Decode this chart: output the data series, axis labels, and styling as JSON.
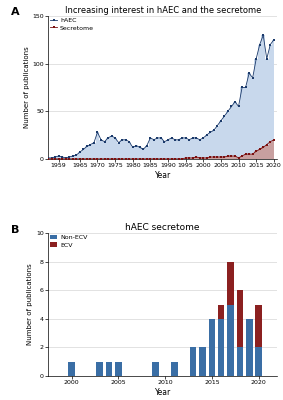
{
  "panel_A": {
    "title": "Increasing interest in hAEC and the secretome",
    "xlabel": "Year",
    "ylabel": "Number of publications",
    "ylim": [
      0,
      150
    ],
    "yticks": [
      0,
      50,
      100,
      150
    ],
    "haec_years": [
      1956,
      1957,
      1958,
      1959,
      1960,
      1961,
      1962,
      1963,
      1964,
      1965,
      1966,
      1967,
      1968,
      1969,
      1970,
      1971,
      1972,
      1973,
      1974,
      1975,
      1976,
      1977,
      1978,
      1979,
      1980,
      1981,
      1982,
      1983,
      1984,
      1985,
      1986,
      1987,
      1988,
      1989,
      1990,
      1991,
      1992,
      1993,
      1994,
      1995,
      1996,
      1997,
      1998,
      1999,
      2000,
      2001,
      2002,
      2003,
      2004,
      2005,
      2006,
      2007,
      2008,
      2009,
      2010,
      2011,
      2012,
      2013,
      2014,
      2015,
      2016,
      2017,
      2018,
      2019,
      2020
    ],
    "haec_values": [
      1,
      1,
      2,
      3,
      2,
      1,
      2,
      3,
      4,
      7,
      10,
      13,
      15,
      17,
      28,
      20,
      18,
      22,
      24,
      22,
      17,
      20,
      20,
      18,
      12,
      14,
      12,
      10,
      14,
      22,
      20,
      22,
      22,
      18,
      20,
      22,
      20,
      20,
      22,
      22,
      20,
      22,
      22,
      20,
      22,
      25,
      28,
      30,
      35,
      40,
      45,
      50,
      55,
      60,
      55,
      75,
      75,
      90,
      85,
      105,
      120,
      130,
      105,
      120,
      125
    ],
    "secretome_years": [
      1956,
      1957,
      1958,
      1959,
      1960,
      1961,
      1962,
      1963,
      1964,
      1965,
      1966,
      1967,
      1968,
      1969,
      1970,
      1971,
      1972,
      1973,
      1974,
      1975,
      1976,
      1977,
      1978,
      1979,
      1980,
      1981,
      1982,
      1983,
      1984,
      1985,
      1986,
      1987,
      1988,
      1989,
      1990,
      1991,
      1992,
      1993,
      1994,
      1995,
      1996,
      1997,
      1998,
      1999,
      2000,
      2001,
      2002,
      2003,
      2004,
      2005,
      2006,
      2007,
      2008,
      2009,
      2010,
      2011,
      2012,
      2013,
      2014,
      2015,
      2016,
      2017,
      2018,
      2019,
      2020
    ],
    "secretome_values": [
      0,
      0,
      0,
      0,
      0,
      0,
      0,
      0,
      0,
      0,
      0,
      0,
      0,
      0,
      0,
      0,
      0,
      0,
      0,
      0,
      0,
      0,
      0,
      0,
      0,
      0,
      0,
      0,
      0,
      0,
      0,
      0,
      0,
      0,
      0,
      0,
      0,
      0,
      0,
      1,
      1,
      1,
      2,
      1,
      1,
      1,
      2,
      2,
      2,
      2,
      2,
      3,
      3,
      3,
      1,
      3,
      5,
      5,
      5,
      8,
      10,
      12,
      15,
      18,
      20
    ],
    "haec_color": "#1B3A6B",
    "haec_fill": "#C8D8EC",
    "secretome_color": "#7B1010",
    "secretome_fill": "#C8A0A0",
    "xtick_years": [
      1959,
      1965,
      1970,
      1975,
      1980,
      1985,
      1990,
      1995,
      2000,
      2005,
      2010,
      2015,
      2020
    ]
  },
  "panel_B": {
    "title": "hAEC secretome",
    "xlabel": "Year",
    "ylabel": "Number of publications",
    "ylim": [
      0,
      10
    ],
    "yticks": [
      0,
      2,
      4,
      6,
      8,
      10
    ],
    "years": [
      2000,
      2003,
      2004,
      2005,
      2009,
      2011,
      2013,
      2014,
      2015,
      2016,
      2017,
      2018,
      2019,
      2020
    ],
    "nonecv_values": [
      1,
      1,
      1,
      1,
      1,
      1,
      2,
      2,
      4,
      4,
      5,
      2,
      4,
      2
    ],
    "ecv_values": [
      0,
      0,
      0,
      0,
      0,
      0,
      0,
      0,
      0,
      1,
      3,
      4,
      0,
      3
    ],
    "nonecv_color": "#3A6EA5",
    "ecv_color": "#8B2020",
    "xtick_years": [
      2000,
      2005,
      2010,
      2015,
      2020
    ],
    "bar_width": 0.7
  }
}
